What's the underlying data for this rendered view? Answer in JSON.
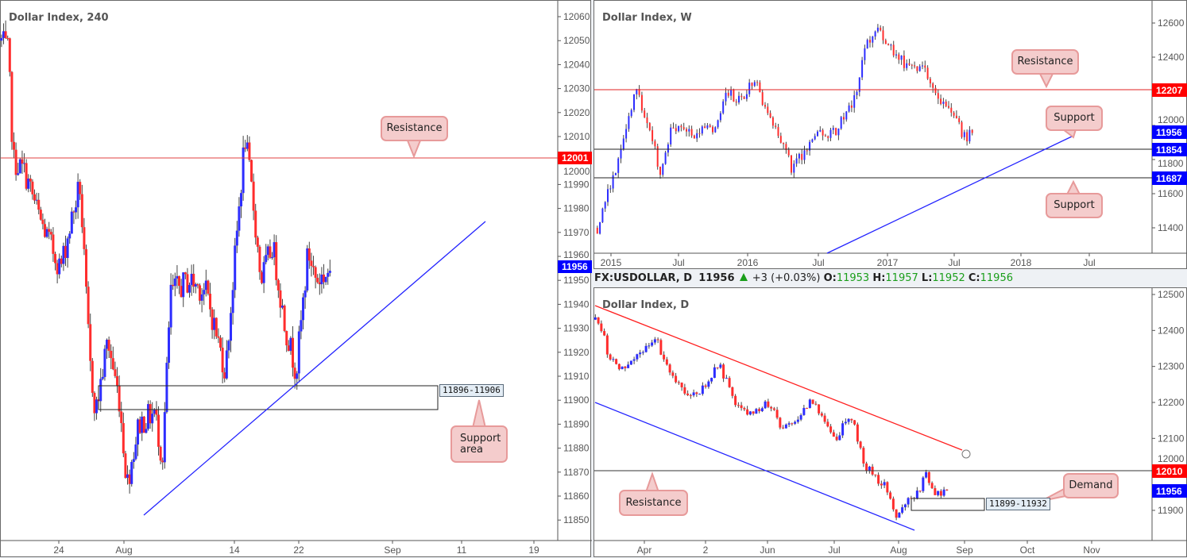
{
  "colors": {
    "up": "#2d2dff",
    "down": "#ff2d2d",
    "resistance": "#ff0000",
    "price_label": "#0000ff",
    "trend_blue": "#2323ff",
    "trend_red": "#ff2020",
    "callout_fill": "#f4cccc"
  },
  "header": {
    "symbol": "FX:USDOLLAR, D",
    "last": "11956",
    "change": "+3 (+0.03%)",
    "o_label": "O:",
    "o": "11953",
    "h_label": "H:",
    "h": "11957",
    "l_label": "L:",
    "l": "11952",
    "c_label": "C:",
    "c": "11956"
  },
  "chart_data": [
    {
      "type": "candlestick",
      "title": "Dollar Index, 240",
      "time_unit": "days since Jul 24",
      "y_ticks": [
        "12060",
        "12050",
        "12040",
        "12030",
        "12020",
        "12010",
        "12000",
        "11990",
        "11980",
        "11970",
        "11960",
        "11950",
        "11940",
        "11930",
        "11920",
        "11910",
        "11900",
        "11890",
        "11880",
        "11870",
        "11860",
        "11850"
      ],
      "x_ticks": [
        "24",
        "Aug",
        "14",
        "22",
        "Sep",
        "11",
        "19"
      ],
      "resistance_level": "12001",
      "current_price": "11956",
      "zone": {
        "label": "11896-11906",
        "low": 11896,
        "high": 11906
      },
      "callouts": [
        "Resistance",
        "Support area"
      ],
      "waypoints": [
        [
          -6.8,
          12050
        ],
        [
          -6,
          12045
        ],
        [
          -5.4,
          12000
        ],
        [
          -4,
          11995
        ],
        [
          -2.2,
          11975
        ],
        [
          0.2,
          11955
        ],
        [
          1.5,
          11975
        ],
        [
          2.5,
          11990
        ],
        [
          3.7,
          11915
        ],
        [
          4.4,
          11895
        ],
        [
          5.8,
          11925
        ],
        [
          7.2,
          11900
        ],
        [
          8.1,
          11865
        ],
        [
          9.5,
          11890
        ],
        [
          11.4,
          11895
        ],
        [
          12.3,
          11875
        ],
        [
          13.3,
          11945
        ],
        [
          15.6,
          11950
        ],
        [
          17.5,
          11945
        ],
        [
          19.8,
          11912
        ],
        [
          20.7,
          11950
        ],
        [
          22.1,
          12010
        ],
        [
          23,
          11985
        ],
        [
          24,
          11950
        ],
        [
          25.4,
          11965
        ],
        [
          26.8,
          11932
        ],
        [
          28.2,
          11912
        ],
        [
          29.6,
          11962
        ],
        [
          30.6,
          11950
        ],
        [
          32.4,
          11954
        ]
      ]
    },
    {
      "type": "candlestick",
      "title": "Dollar Index, W",
      "time_unit": "year",
      "y_ticks": [
        "12600",
        "12400",
        "12000",
        "11800",
        "11600",
        "11400"
      ],
      "x_ticks": [
        "2015",
        "Jul",
        "2016",
        "Jul",
        "2017",
        "Jul",
        "2018",
        "Jul"
      ],
      "levels": [
        "12207",
        "11854",
        "11687"
      ],
      "current_price": "11956",
      "callouts": [
        "Resistance",
        "Support",
        "Support"
      ],
      "waypoints": [
        [
          2014.9,
          11400
        ],
        [
          2015.0,
          11650
        ],
        [
          2015.13,
          12050
        ],
        [
          2015.19,
          12200
        ],
        [
          2015.3,
          11950
        ],
        [
          2015.36,
          11720
        ],
        [
          2015.45,
          12000
        ],
        [
          2015.59,
          11950
        ],
        [
          2015.77,
          12000
        ],
        [
          2015.85,
          12200
        ],
        [
          2015.94,
          12150
        ],
        [
          2016.06,
          12280
        ],
        [
          2016.15,
          12050
        ],
        [
          2016.26,
          11870
        ],
        [
          2016.33,
          11740
        ],
        [
          2016.44,
          11880
        ],
        [
          2016.52,
          11950
        ],
        [
          2016.64,
          11960
        ],
        [
          2016.78,
          12150
        ],
        [
          2016.87,
          12480
        ],
        [
          2016.96,
          12580
        ],
        [
          2017.05,
          12450
        ],
        [
          2017.16,
          12350
        ],
        [
          2017.28,
          12330
        ],
        [
          2017.4,
          12150
        ],
        [
          2017.51,
          12080
        ],
        [
          2017.57,
          11930
        ],
        [
          2017.66,
          11956
        ]
      ]
    },
    {
      "type": "candlestick",
      "title": "Dollar Index, D",
      "time_unit": "days since Apr 1",
      "y_ticks": [
        "12500",
        "12400",
        "12300",
        "12200",
        "12100",
        "12000",
        "11900"
      ],
      "x_ticks": [
        "Apr",
        "2",
        "Jun",
        "Jul",
        "Aug",
        "Sep",
        "Oct",
        "Nov"
      ],
      "resistance_level": "12010",
      "current_price": "11956",
      "zone": {
        "label": "11899-11932",
        "low": 11899,
        "high": 11932
      },
      "callouts": [
        "Resistance",
        "Demand"
      ],
      "waypoints": [
        [
          -23,
          12430
        ],
        [
          -19,
          12390
        ],
        [
          -17,
          12330
        ],
        [
          -11,
          12295
        ],
        [
          -4,
          12330
        ],
        [
          6,
          12370
        ],
        [
          11,
          12290
        ],
        [
          19,
          12230
        ],
        [
          26,
          12230
        ],
        [
          35,
          12305
        ],
        [
          43,
          12200
        ],
        [
          50,
          12165
        ],
        [
          58,
          12200
        ],
        [
          65,
          12125
        ],
        [
          73,
          12160
        ],
        [
          78,
          12210
        ],
        [
          86,
          12140
        ],
        [
          90,
          12085
        ],
        [
          95,
          12160
        ],
        [
          99,
          12130
        ],
        [
          103,
          12030
        ],
        [
          108,
          11995
        ],
        [
          114,
          11960
        ],
        [
          118,
          11875
        ],
        [
          123,
          11920
        ],
        [
          129,
          11950
        ],
        [
          132,
          12000
        ],
        [
          136,
          11950
        ],
        [
          140,
          11945
        ],
        [
          143,
          11956
        ]
      ]
    }
  ]
}
